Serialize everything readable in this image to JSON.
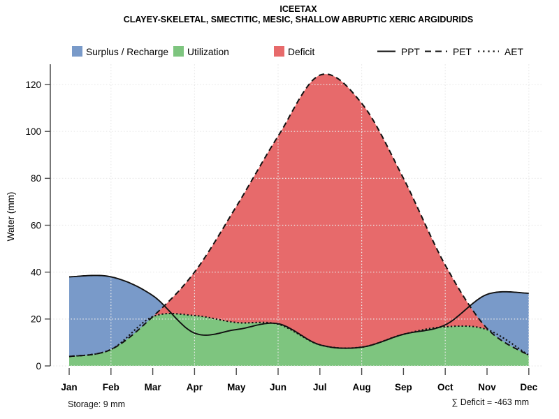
{
  "header": {
    "title": "ICEETAX",
    "subtitle": "CLAYEY-SKELETAL, SMECTITIC, MESIC, SHALLOW ABRUPTIC XERIC ARGIDURIDS"
  },
  "legend": {
    "fills": [
      {
        "label": "Surplus / Recharge",
        "color": "#799AC9"
      },
      {
        "label": "Utilization",
        "color": "#7EC57F"
      },
      {
        "label": "Deficit",
        "color": "#E76A6B"
      }
    ],
    "lines": [
      {
        "label": "PPT",
        "style": "solid"
      },
      {
        "label": "PET",
        "style": "dashed"
      },
      {
        "label": "AET",
        "style": "dotted"
      }
    ]
  },
  "axes": {
    "y_label": "Water (mm)"
  },
  "footer": {
    "storage": "Storage: 9 mm",
    "deficit": "∑ Deficit = -463 mm"
  },
  "chart_data": {
    "type": "area",
    "title": "ICEETAX",
    "subtitle": "CLAYEY-SKELETAL, SMECTITIC, MESIC, SHALLOW ABRUPTIC XERIC ARGIDURIDS",
    "ylabel": "Water (mm)",
    "ylim": [
      0,
      130
    ],
    "yticks": [
      0,
      20,
      40,
      60,
      80,
      100,
      120
    ],
    "grid": "dotted; horizontal every 20 mm, vertical every second month",
    "legend_position": "top",
    "categories": [
      "Jan",
      "Feb",
      "Mar",
      "Apr",
      "May",
      "Jun",
      "Jul",
      "Aug",
      "Sep",
      "Oct",
      "Nov",
      "Dec"
    ],
    "series": [
      {
        "name": "PPT",
        "style": "solid",
        "values": [
          38,
          38,
          30,
          14,
          15.5,
          18,
          9,
          8,
          13.5,
          17.5,
          30.5,
          31
        ]
      },
      {
        "name": "PET",
        "style": "dashed",
        "values": [
          4,
          7,
          21,
          40,
          68,
          98,
          124,
          112,
          80,
          43,
          16,
          4.5
        ]
      },
      {
        "name": "AET",
        "style": "dotted",
        "values": [
          4,
          7,
          21,
          21.5,
          18.5,
          17.8,
          9,
          8,
          13.5,
          16.7,
          15.5,
          4.5
        ]
      }
    ],
    "areas": [
      {
        "name": "Utilization",
        "color": "#7EC57F",
        "between": [
          "AET",
          "zero"
        ]
      },
      {
        "name": "Deficit",
        "color": "#E76A6B",
        "between": [
          "PET",
          "AET"
        ],
        "where": "PET>AET"
      },
      {
        "name": "Surplus / Recharge",
        "color": "#799AC9",
        "between": [
          "PPT",
          "PET"
        ],
        "where": "PPT>PET"
      }
    ],
    "annotations": {
      "storage": "Storage: 9 mm",
      "total_deficit_mm": -463
    }
  }
}
